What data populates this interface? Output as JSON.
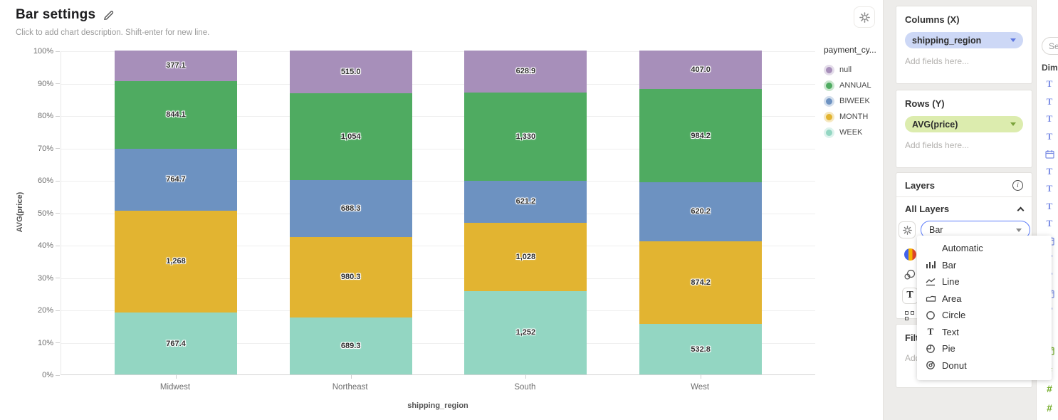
{
  "header": {
    "title": "Bar settings",
    "description": "Click to add chart description. Shift-enter for new line."
  },
  "chart_data": {
    "type": "bar",
    "stacked": true,
    "normalized_percent": true,
    "categories": [
      "Midwest",
      "Northeast",
      "South",
      "West"
    ],
    "series": [
      {
        "name": "WEEK",
        "color": "#93d6c2",
        "values": [
          767.4,
          689.3,
          1252,
          532.8
        ],
        "labels": [
          "767.4",
          "689.3",
          "1,252",
          "532.8"
        ]
      },
      {
        "name": "MONTH",
        "color": "#e2b431",
        "values": [
          1268,
          980.3,
          1028,
          874.2
        ],
        "labels": [
          "1,268",
          "980.3",
          "1,028",
          "874.2"
        ]
      },
      {
        "name": "BIWEEK",
        "color": "#6d92c1",
        "values": [
          764.7,
          688.3,
          621.2,
          620.2
        ],
        "labels": [
          "764.7",
          "688.3",
          "621.2",
          "620.2"
        ]
      },
      {
        "name": "ANNUAL",
        "color": "#4fab61",
        "values": [
          844.1,
          1054,
          1330,
          984.2
        ],
        "labels": [
          "844.1",
          "1,054",
          "1,330",
          "984.2"
        ]
      },
      {
        "name": "null",
        "color": "#a78fba",
        "values": [
          377.1,
          515.0,
          628.9,
          407.0
        ],
        "labels": [
          "377.1",
          "515.0",
          "628.9",
          "407.0"
        ]
      }
    ],
    "xlabel": "shipping_region",
    "ylabel": "AVG(price)",
    "y_ticks": [
      "100%",
      "90%",
      "80%",
      "70%",
      "60%",
      "50%",
      "40%",
      "30%",
      "20%",
      "10%",
      "0%"
    ],
    "ylim": [
      "0%",
      "100%"
    ],
    "grid": true,
    "legend": {
      "position": "right",
      "title": "payment_cy...",
      "items": [
        {
          "label": "null",
          "color": "#a78fba"
        },
        {
          "label": "ANNUAL",
          "color": "#4fab61"
        },
        {
          "label": "BIWEEK",
          "color": "#6d92c1"
        },
        {
          "label": "MONTH",
          "color": "#e2b431"
        },
        {
          "label": "WEEK",
          "color": "#93d6c2"
        }
      ]
    }
  },
  "config_panel": {
    "columns": {
      "title": "Columns (X)",
      "pill": "shipping_region",
      "pill_color": "#cdd8f6",
      "caret_color": "#5e77e0",
      "placeholder": "Add fields here..."
    },
    "rows": {
      "title": "Rows (Y)",
      "pill": "AVG(price)",
      "pill_color": "#dcecae",
      "caret_color": "#7aa33a",
      "placeholder": "Add fields here..."
    },
    "layers": {
      "title": "Layers",
      "all_layers_label": "All Layers",
      "mark_type_value": "Bar",
      "focus_border_color": "#5c7cfa"
    },
    "filter": {
      "title": "Filter",
      "placeholder": "Add filters here..."
    }
  },
  "mark_dropdown": {
    "options": [
      {
        "icon": "none",
        "label": "Automatic"
      },
      {
        "icon": "bar",
        "label": "Bar"
      },
      {
        "icon": "line",
        "label": "Line"
      },
      {
        "icon": "area",
        "label": "Area"
      },
      {
        "icon": "circle",
        "label": "Circle"
      },
      {
        "icon": "text",
        "label": "Text"
      },
      {
        "icon": "pie",
        "label": "Pie"
      },
      {
        "icon": "donut",
        "label": "Donut"
      }
    ]
  },
  "fields_panel": {
    "search_placeholder": "Search",
    "dimensions_label": "Dimensions",
    "dimension_color": "#7b8de4",
    "measure_color": "#72ab27",
    "dimension_field_icons": [
      "text",
      "text",
      "text",
      "text",
      "date",
      "text",
      "text",
      "text",
      "text",
      "date",
      "text",
      "text",
      "date",
      "text"
    ],
    "measure_fragment": "a",
    "measure_field_icons": [
      "date",
      "number",
      "number",
      "number"
    ]
  },
  "icons": {
    "edit": "pencil-icon",
    "settings": "gear-icon",
    "info": "info-icon",
    "collapse": "chevron-up-icon",
    "palette": "color-palette-icon",
    "opacity": "overlapping-circles-icon",
    "text": "text-icon",
    "size": "size-squares-icon"
  }
}
